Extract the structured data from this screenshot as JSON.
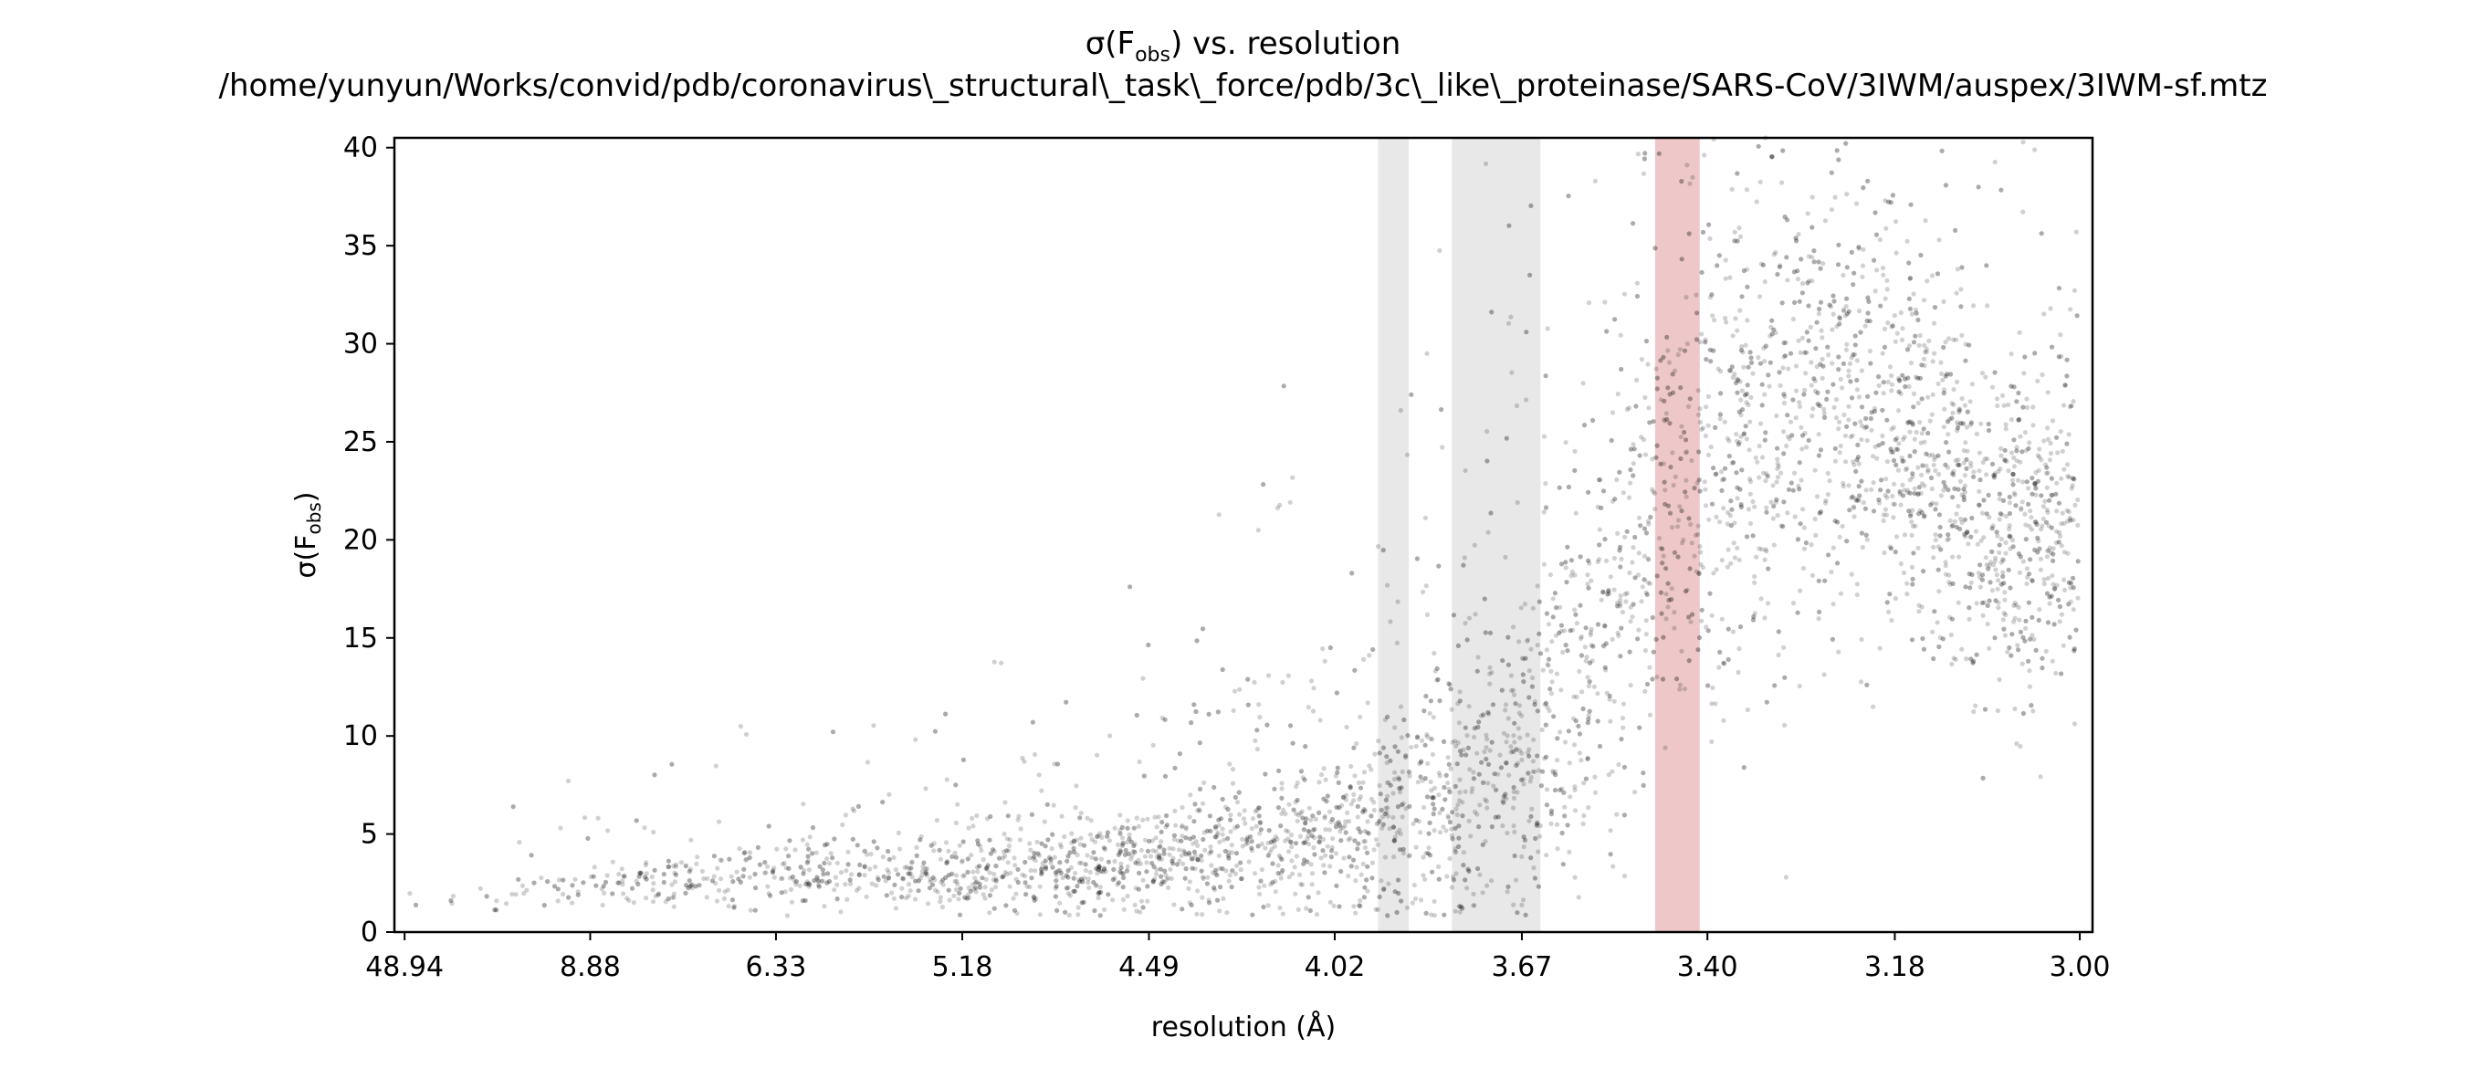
{
  "chart_data": {
    "type": "scatter",
    "title": {
      "line1_prefix": "σ(F",
      "line1_sub": "obs",
      "line1_suffix": ") vs. resolution",
      "line2": "/home/yunyun/Works/convid/pdb/coronavirus\\_structural\\_task\\_force/pdb/3c\\_like\\_proteinase/SARS-CoV/3IWM/auspex/3IWM-sf.mtz"
    },
    "xlabel": "resolution (Å)",
    "ylabel": {
      "prefix": "σ(F",
      "sub": "obs",
      "suffix": ")"
    },
    "x_axis_scale": "inverse-square resolution",
    "x_ticks": [
      "48.94",
      "8.88",
      "6.33",
      "5.18",
      "4.49",
      "4.02",
      "3.67",
      "3.40",
      "3.18",
      "3.00"
    ],
    "y_ticks": [
      0,
      5,
      10,
      15,
      20,
      25,
      30,
      35,
      40
    ],
    "ylim": [
      0,
      40.5
    ],
    "xlim_resolution": [
      48.94,
      3.0
    ],
    "point_color": "#000000",
    "point_opacity": 0.18,
    "ice_ring_bands": [
      {
        "from": 3.93,
        "to": 3.87,
        "color": "#d9d9d9"
      },
      {
        "from": 3.79,
        "to": 3.64,
        "color": "#d9d9d9"
      },
      {
        "from": 3.47,
        "to": 3.41,
        "color": "#e3a3a3"
      }
    ],
    "series_profile": [
      {
        "resolution": 48.94,
        "median_sigma": 1.3,
        "spread": 0.4
      },
      {
        "resolution": 8.88,
        "median_sigma": 2.3,
        "spread": 0.6
      },
      {
        "resolution": 6.33,
        "median_sigma": 2.7,
        "spread": 0.8
      },
      {
        "resolution": 5.18,
        "median_sigma": 3.0,
        "spread": 1.0
      },
      {
        "resolution": 4.49,
        "median_sigma": 3.5,
        "spread": 1.3
      },
      {
        "resolution": 4.02,
        "median_sigma": 4.5,
        "spread": 2.0
      },
      {
        "resolution": 3.67,
        "median_sigma": 8.0,
        "spread": 4.0
      },
      {
        "resolution": 3.45,
        "median_sigma": 22.0,
        "spread": 6.0
      },
      {
        "resolution": 3.3,
        "median_sigma": 27.0,
        "spread": 6.0
      },
      {
        "resolution": 3.18,
        "median_sigma": 25.0,
        "spread": 5.0
      },
      {
        "resolution": 3.08,
        "median_sigma": 20.0,
        "spread": 4.0
      },
      {
        "resolution": 3.0,
        "median_sigma": 21.0,
        "spread": 5.0
      }
    ],
    "legend": "none",
    "grid": false
  }
}
